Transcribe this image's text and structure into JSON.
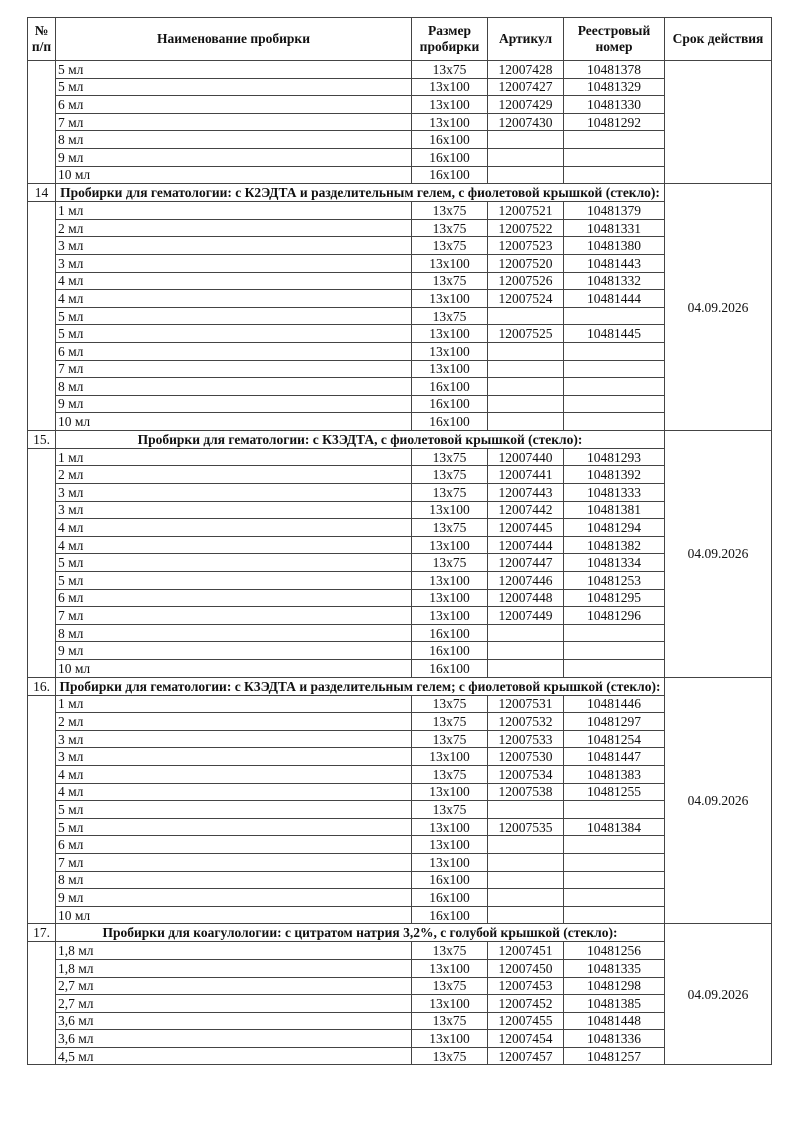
{
  "headers": {
    "num": "№ п/п",
    "name": "Наименование пробирки",
    "size": "Размер пробирки",
    "article": "Артикул",
    "registry": "Реестровый номер",
    "expiry": "Срок действия"
  },
  "groups": [
    {
      "number": "",
      "title": "",
      "expiry": "",
      "rows": [
        [
          "5 мл",
          "13x75",
          "12007428",
          "10481378"
        ],
        [
          "5 мл",
          "13x100",
          "12007427",
          "10481329"
        ],
        [
          "6 мл",
          "13x100",
          "12007429",
          "10481330"
        ],
        [
          "7 мл",
          "13x100",
          "12007430",
          "10481292"
        ],
        [
          "8 мл",
          "16x100",
          "",
          ""
        ],
        [
          "9 мл",
          "16x100",
          "",
          ""
        ],
        [
          "10 мл",
          "16x100",
          "",
          ""
        ]
      ]
    },
    {
      "number": "14",
      "title": "Пробирки для гематологии: с К2ЭДТА и разделительным гелем, с фиолетовой крышкой (стекло):",
      "expiry": "04.09.2026",
      "rows": [
        [
          "1 мл",
          "13x75",
          "12007521",
          "10481379"
        ],
        [
          "2 мл",
          "13x75",
          "12007522",
          "10481331"
        ],
        [
          "3 мл",
          "13x75",
          "12007523",
          "10481380"
        ],
        [
          "3 мл",
          "13x100",
          "12007520",
          "10481443"
        ],
        [
          "4 мл",
          "13x75",
          "12007526",
          "10481332"
        ],
        [
          "4 мл",
          "13x100",
          "12007524",
          "10481444"
        ],
        [
          "5 мл",
          "13x75",
          "",
          ""
        ],
        [
          "5 мл",
          "13x100",
          "12007525",
          "10481445"
        ],
        [
          "6 мл",
          "13x100",
          "",
          ""
        ],
        [
          "7 мл",
          "13x100",
          "",
          ""
        ],
        [
          "8 мл",
          "16x100",
          "",
          ""
        ],
        [
          "9 мл",
          "16x100",
          "",
          ""
        ],
        [
          "10 мл",
          "16x100",
          "",
          ""
        ]
      ]
    },
    {
      "number": "15.",
      "title": "Пробирки для гематологии: с К3ЭДТА, с фиолетовой крышкой (стекло):",
      "expiry": "04.09.2026",
      "rows": [
        [
          "1 мл",
          "13x75",
          "12007440",
          "10481293"
        ],
        [
          "2 мл",
          "13x75",
          "12007441",
          "10481392"
        ],
        [
          "3 мл",
          "13x75",
          "12007443",
          "10481333"
        ],
        [
          "3 мл",
          "13x100",
          "12007442",
          "10481381"
        ],
        [
          "4 мл",
          "13x75",
          "12007445",
          "10481294"
        ],
        [
          "4 мл",
          "13x100",
          "12007444",
          "10481382"
        ],
        [
          "5 мл",
          "13x75",
          "12007447",
          "10481334"
        ],
        [
          "5 мл",
          "13x100",
          "12007446",
          "10481253"
        ],
        [
          "6 мл",
          "13x100",
          "12007448",
          "10481295"
        ],
        [
          "7 мл",
          "13x100",
          "12007449",
          "10481296"
        ],
        [
          "8 мл",
          "16x100",
          "",
          ""
        ],
        [
          "9 мл",
          "16x100",
          "",
          ""
        ],
        [
          "10 мл",
          "16x100",
          "",
          ""
        ]
      ]
    },
    {
      "number": "16.",
      "title": "Пробирки для гематологии: с К3ЭДТА и разделительным гелем; с фиолетовой крышкой (стекло):",
      "expiry": "04.09.2026",
      "rows": [
        [
          "1 мл",
          "13x75",
          "12007531",
          "10481446"
        ],
        [
          "2 мл",
          "13x75",
          "12007532",
          "10481297"
        ],
        [
          "3 мл",
          "13x75",
          "12007533",
          "10481254"
        ],
        [
          "3 мл",
          "13x100",
          "12007530",
          "10481447"
        ],
        [
          "4 мл",
          "13x75",
          "12007534",
          "10481383"
        ],
        [
          "4 мл",
          "13x100",
          "12007538",
          "10481255"
        ],
        [
          "5 мл",
          "13x75",
          "",
          ""
        ],
        [
          "5 мл",
          "13x100",
          "12007535",
          "10481384"
        ],
        [
          "6 мл",
          "13x100",
          "",
          ""
        ],
        [
          "7 мл",
          "13x100",
          "",
          ""
        ],
        [
          "8 мл",
          "16x100",
          "",
          ""
        ],
        [
          "9 мл",
          "16x100",
          "",
          ""
        ],
        [
          "10 мл",
          "16x100",
          "",
          ""
        ]
      ]
    },
    {
      "number": "17.",
      "title": "Пробирки для коагулологии: с цитратом натрия 3,2%, с голубой крышкой (стекло):",
      "expiry": "04.09.2026",
      "rows": [
        [
          "1,8 мл",
          "13x75",
          "12007451",
          "10481256"
        ],
        [
          "1,8 мл",
          "13x100",
          "12007450",
          "10481335"
        ],
        [
          "2,7 мл",
          "13x75",
          "12007453",
          "10481298"
        ],
        [
          "2,7 мл",
          "13x100",
          "12007452",
          "10481385"
        ],
        [
          "3,6 мл",
          "13x75",
          "12007455",
          "10481448"
        ],
        [
          "3,6 мл",
          "13x100",
          "12007454",
          "10481336"
        ],
        [
          "4,5 мл",
          "13x75",
          "12007457",
          "10481257"
        ]
      ]
    }
  ]
}
